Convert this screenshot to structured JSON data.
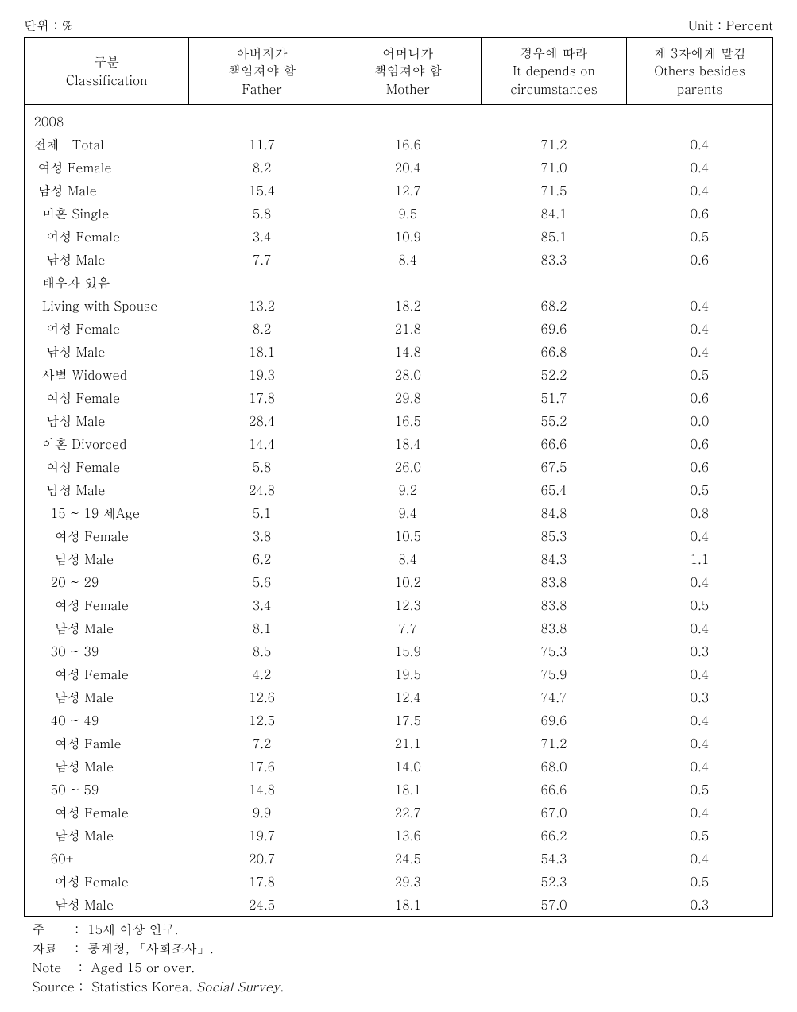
{
  "units": {
    "left": "단위 : %",
    "right": "Unit : Percent"
  },
  "headers": {
    "c0_line1": "구분",
    "c0_line2": "Classification",
    "c1_line1": "아버지가",
    "c1_line2": "책임져야 함",
    "c1_line3": "Father",
    "c2_line1": "어머니가",
    "c2_line2": "책임져야 함",
    "c2_line3": "Mother",
    "c3_line1": "경우에 따라",
    "c3_line2": "It depends on",
    "c3_line3": "circumstances",
    "c4_line1": "제 3자에게 맡김",
    "c4_line2": "Others besides parents"
  },
  "rows": [
    {
      "label": " 2008",
      "v1": "",
      "v2": "",
      "v3": "",
      "v4": ""
    },
    {
      "label": " 전체   Total",
      "v1": "11.7",
      "v2": "16.6",
      "v3": "71.2",
      "v4": "0.4"
    },
    {
      "label": "  여성 Female",
      "v1": "8.2",
      "v2": "20.4",
      "v3": "71.0",
      "v4": "0.4"
    },
    {
      "label": "  남성 Male",
      "v1": "15.4",
      "v2": "12.7",
      "v3": "71.5",
      "v4": "0.4"
    },
    {
      "label": "   미혼 Single",
      "v1": "5.8",
      "v2": "9.5",
      "v3": "84.1",
      "v4": "0.6"
    },
    {
      "label": "    여성 Female",
      "v1": "3.4",
      "v2": "10.9",
      "v3": "85.1",
      "v4": "0.5"
    },
    {
      "label": "    남성 Male",
      "v1": "7.7",
      "v2": "8.4",
      "v3": "83.3",
      "v4": "0.6"
    },
    {
      "label": "   배우자 있음",
      "v1": "",
      "v2": "",
      "v3": "",
      "v4": ""
    },
    {
      "label": "   Living with Spouse",
      "v1": "13.2",
      "v2": "18.2",
      "v3": "68.2",
      "v4": "0.4"
    },
    {
      "label": "    여성 Female",
      "v1": "8.2",
      "v2": "21.8",
      "v3": "69.6",
      "v4": "0.4"
    },
    {
      "label": "    남성 Male",
      "v1": "18.1",
      "v2": "14.8",
      "v3": "66.8",
      "v4": "0.4"
    },
    {
      "label": "   사별 Widowed",
      "v1": "19.3",
      "v2": "28.0",
      "v3": "52.2",
      "v4": "0.5"
    },
    {
      "label": "    여성 Female",
      "v1": "17.8",
      "v2": "29.8",
      "v3": "51.7",
      "v4": "0.6"
    },
    {
      "label": "    남성 Male",
      "v1": "28.4",
      "v2": "16.5",
      "v3": "55.2",
      "v4": "0.0"
    },
    {
      "label": "   이혼 Divorced",
      "v1": "14.4",
      "v2": "18.4",
      "v3": "66.6",
      "v4": "0.6"
    },
    {
      "label": "    여성 Female",
      "v1": "5.8",
      "v2": "26.0",
      "v3": "67.5",
      "v4": "0.6"
    },
    {
      "label": "    남성 Male",
      "v1": "24.8",
      "v2": "9.2",
      "v3": "65.4",
      "v4": "0.5"
    },
    {
      "label": "     15 ~ 19 세Age",
      "v1": "5.1",
      "v2": "9.4",
      "v3": "84.8",
      "v4": "0.8"
    },
    {
      "label": "      여성 Female",
      "v1": "3.8",
      "v2": "10.5",
      "v3": "85.3",
      "v4": "0.4"
    },
    {
      "label": "      남성 Male",
      "v1": "6.2",
      "v2": "8.4",
      "v3": "84.3",
      "v4": "1.1"
    },
    {
      "label": "     20 ~ 29",
      "v1": "5.6",
      "v2": "10.2",
      "v3": "83.8",
      "v4": "0.4"
    },
    {
      "label": "      여성 Female",
      "v1": "3.4",
      "v2": "12.3",
      "v3": "83.8",
      "v4": "0.5"
    },
    {
      "label": "      남성 Male",
      "v1": "8.1",
      "v2": "7.7",
      "v3": "83.8",
      "v4": "0.4"
    },
    {
      "label": "     30 ~ 39",
      "v1": "8.5",
      "v2": "15.9",
      "v3": "75.3",
      "v4": "0.3"
    },
    {
      "label": "      여성 Female",
      "v1": "4.2",
      "v2": "19.5",
      "v3": "75.9",
      "v4": "0.4"
    },
    {
      "label": "      남성 Male",
      "v1": "12.6",
      "v2": "12.4",
      "v3": "74.7",
      "v4": "0.3"
    },
    {
      "label": "     40 ~ 49",
      "v1": "12.5",
      "v2": "17.5",
      "v3": "69.6",
      "v4": "0.4"
    },
    {
      "label": "      여성 Famle",
      "v1": "7.2",
      "v2": "21.1",
      "v3": "71.2",
      "v4": "0.4"
    },
    {
      "label": "      남성 Male",
      "v1": "17.6",
      "v2": "14.0",
      "v3": "68.0",
      "v4": "0.4"
    },
    {
      "label": "     50 ~ 59",
      "v1": "14.8",
      "v2": "18.1",
      "v3": "66.6",
      "v4": "0.5"
    },
    {
      "label": "      여성 Female",
      "v1": "9.9",
      "v2": "22.7",
      "v3": "67.0",
      "v4": "0.4"
    },
    {
      "label": "      남성 Male",
      "v1": "19.7",
      "v2": "13.6",
      "v3": "66.2",
      "v4": "0.5"
    },
    {
      "label": "     60+",
      "v1": "20.7",
      "v2": "24.5",
      "v3": "54.3",
      "v4": "0.4"
    },
    {
      "label": "      여성 Female",
      "v1": "17.8",
      "v2": "29.3",
      "v3": "52.3",
      "v4": "0.5"
    },
    {
      "label": "      남성 Male",
      "v1": "24.5",
      "v2": "18.1",
      "v3": "57.0",
      "v4": "0.3"
    }
  ],
  "notes": {
    "n1": "  주       :  15세 이상 인구.",
    "n2": "  자료    :  통계청, 「사회조사」.",
    "n3": "  Note    :  Aged 15 or over.",
    "n4a": "  Source :  Statistics Korea. ",
    "n4b": "Social Survey",
    "n4c": "."
  }
}
